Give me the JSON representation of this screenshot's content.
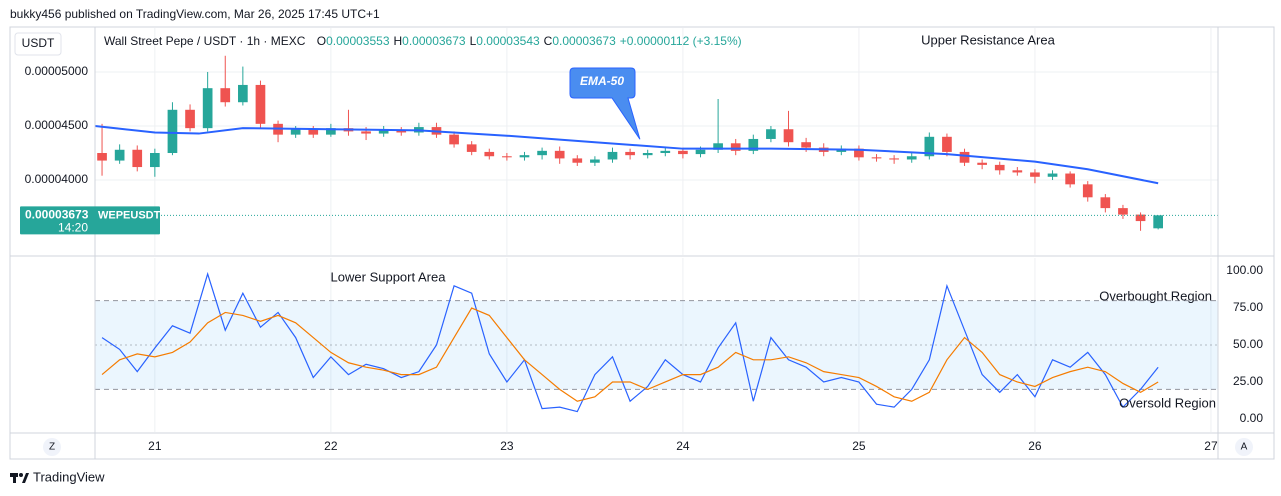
{
  "header": {
    "published": "bukky456 published on TradingView.com, Mar 26, 2025 17:45 UTC+1",
    "brand": "TradingView"
  },
  "legend": {
    "symbol": "Wall Street Pepe / USDT · 1h · MEXC",
    "ohlc": [
      {
        "key": "O",
        "value": 3.553e-05
      },
      {
        "key": "H",
        "value": 3.673e-05
      },
      {
        "key": "L",
        "value": 3.543e-05
      },
      {
        "key": "C",
        "value": 3.673e-05
      }
    ],
    "change": "+0.00000112 (+3.15%)"
  },
  "scale_buttons": [
    "Z",
    "A"
  ],
  "chart_data": [
    {
      "type": "candlestick",
      "scale_label": "USDT",
      "up_color": "#26a69a",
      "down_color": "#ef5350",
      "x": [
        20.7,
        20.8,
        20.9,
        21.0,
        21.1,
        21.2,
        21.3,
        21.4,
        21.5,
        21.6,
        21.7,
        21.8,
        21.9,
        22.0,
        22.1,
        22.2,
        22.3,
        22.4,
        22.5,
        22.6,
        22.7,
        22.8,
        22.9,
        23.0,
        23.1,
        23.2,
        23.3,
        23.4,
        23.5,
        23.6,
        23.7,
        23.8,
        23.9,
        24.0,
        24.1,
        24.2,
        24.3,
        24.4,
        24.5,
        24.6,
        24.7,
        24.8,
        24.9,
        25.0,
        25.1,
        25.2,
        25.3,
        25.4,
        25.5,
        25.6,
        25.7,
        25.8,
        25.9,
        26.0,
        26.1,
        26.2,
        26.3,
        26.4,
        26.5,
        26.6,
        26.7
      ],
      "open": [
        4.25e-05,
        4.18e-05,
        4.28e-05,
        4.12e-05,
        4.25e-05,
        4.65e-05,
        4.48e-05,
        4.85e-05,
        4.72e-05,
        4.88e-05,
        4.52e-05,
        4.42e-05,
        4.47e-05,
        4.42e-05,
        4.48e-05,
        4.45e-05,
        4.43e-05,
        4.46e-05,
        4.44e-05,
        4.49e-05,
        4.42e-05,
        4.33e-05,
        4.26e-05,
        4.22e-05,
        4.21e-05,
        4.23e-05,
        4.27e-05,
        4.2e-05,
        4.16e-05,
        4.19e-05,
        4.26e-05,
        4.23e-05,
        4.25e-05,
        4.27e-05,
        4.24e-05,
        4.28e-05,
        4.34e-05,
        4.27e-05,
        4.38e-05,
        4.47e-05,
        4.35e-05,
        4.3e-05,
        4.26e-05,
        4.29e-05,
        4.21e-05,
        4.2e-05,
        4.19e-05,
        4.22e-05,
        4.4e-05,
        4.26e-05,
        4.16e-05,
        4.14e-05,
        4.09e-05,
        4.07e-05,
        4.03e-05,
        4.06e-05,
        3.96e-05,
        3.84e-05,
        3.74e-05,
        3.68e-05,
        3.553e-05
      ],
      "high": [
        4.52e-05,
        4.33e-05,
        4.32e-05,
        4.29e-05,
        4.72e-05,
        4.7e-05,
        5e-05,
        5.15e-05,
        5.05e-05,
        4.92e-05,
        4.55e-05,
        4.5e-05,
        4.5e-05,
        4.52e-05,
        4.65e-05,
        4.49e-05,
        4.5e-05,
        4.49e-05,
        4.53e-05,
        4.53e-05,
        4.45e-05,
        4.36e-05,
        4.29e-05,
        4.25e-05,
        4.26e-05,
        4.3e-05,
        4.31e-05,
        4.23e-05,
        4.22e-05,
        4.3e-05,
        4.29e-05,
        4.28e-05,
        4.31e-05,
        4.3e-05,
        4.31e-05,
        4.75e-05,
        4.38e-05,
        4.42e-05,
        4.5e-05,
        4.64e-05,
        4.39e-05,
        4.34e-05,
        4.32e-05,
        4.32e-05,
        4.24e-05,
        4.23e-05,
        4.25e-05,
        4.44e-05,
        4.43e-05,
        4.29e-05,
        4.19e-05,
        4.17e-05,
        4.12e-05,
        4.1e-05,
        4.09e-05,
        4.08e-05,
        3.99e-05,
        3.87e-05,
        3.77e-05,
        3.7e-05,
        3.673e-05
      ],
      "low": [
        4.04e-05,
        4.15e-05,
        4.08e-05,
        4.03e-05,
        4.23e-05,
        4.45e-05,
        4.45e-05,
        4.68e-05,
        4.69e-05,
        4.48e-05,
        4.35e-05,
        4.39e-05,
        4.39e-05,
        4.4e-05,
        4.41e-05,
        4.37e-05,
        4.4e-05,
        4.41e-05,
        4.41e-05,
        4.39e-05,
        4.3e-05,
        4.23e-05,
        4.19e-05,
        4.18e-05,
        4.18e-05,
        4.19e-05,
        4.15e-05,
        4.13e-05,
        4.13e-05,
        4.16e-05,
        4.19e-05,
        4.2e-05,
        4.22e-05,
        4.2e-05,
        4.21e-05,
        4.25e-05,
        4.23e-05,
        4.24e-05,
        4.35e-05,
        4.31e-05,
        4.26e-05,
        4.22e-05,
        4.23e-05,
        4.18e-05,
        4.17e-05,
        4.15e-05,
        4.16e-05,
        4.19e-05,
        4.22e-05,
        4.13e-05,
        4.1e-05,
        4.05e-05,
        4.04e-05,
        3.97e-05,
        4e-05,
        3.93e-05,
        3.8e-05,
        3.7e-05,
        3.64e-05,
        3.53e-05,
        3.543e-05
      ],
      "close": [
        4.18e-05,
        4.28e-05,
        4.12e-05,
        4.25e-05,
        4.65e-05,
        4.48e-05,
        4.85e-05,
        4.72e-05,
        4.88e-05,
        4.52e-05,
        4.42e-05,
        4.47e-05,
        4.42e-05,
        4.48e-05,
        4.45e-05,
        4.43e-05,
        4.46e-05,
        4.44e-05,
        4.49e-05,
        4.42e-05,
        4.33e-05,
        4.26e-05,
        4.22e-05,
        4.21e-05,
        4.23e-05,
        4.27e-05,
        4.2e-05,
        4.16e-05,
        4.19e-05,
        4.26e-05,
        4.23e-05,
        4.25e-05,
        4.27e-05,
        4.24e-05,
        4.28e-05,
        4.34e-05,
        4.27e-05,
        4.38e-05,
        4.47e-05,
        4.35e-05,
        4.3e-05,
        4.26e-05,
        4.29e-05,
        4.21e-05,
        4.2e-05,
        4.19e-05,
        4.22e-05,
        4.4e-05,
        4.26e-05,
        4.16e-05,
        4.14e-05,
        4.09e-05,
        4.07e-05,
        4.03e-05,
        4.06e-05,
        3.96e-05,
        3.84e-05,
        3.74e-05,
        3.68e-05,
        3.62e-05,
        3.673e-05
      ],
      "series": [
        {
          "name": "EMA-50",
          "color": "#2962ff",
          "x": [
            20.66,
            21.0,
            21.25,
            21.5,
            22.0,
            22.5,
            23.0,
            23.5,
            24.0,
            24.5,
            25.0,
            25.5,
            26.0,
            26.3,
            26.7
          ],
          "values": [
            4.5e-05,
            4.44e-05,
            4.43e-05,
            4.48e-05,
            4.47e-05,
            4.46e-05,
            4.41e-05,
            4.35e-05,
            4.29e-05,
            4.29e-05,
            4.28e-05,
            4.24e-05,
            4.17e-05,
            4.1e-05,
            3.97e-05
          ]
        }
      ],
      "last_price": 3.673e-05,
      "symbol_tag": "WEPEUSDT",
      "countdown": "14:20",
      "annotations": [
        "Upper Resistance Area"
      ],
      "xlim": [
        20.66,
        27.04
      ],
      "xticks": [
        21,
        22,
        23,
        24,
        25,
        26,
        27
      ],
      "ylim": [
        3.306e-05,
        5.407e-05
      ],
      "yticks": [
        {
          "value": 4e-05,
          "label": "0.00004000"
        },
        {
          "value": 4.5e-05,
          "label": "0.00004500"
        },
        {
          "value": 5e-05,
          "label": "0.00005000"
        }
      ],
      "grid": true
    },
    {
      "type": "line",
      "x": [
        20.7,
        20.8,
        20.9,
        21.0,
        21.1,
        21.2,
        21.3,
        21.4,
        21.5,
        21.6,
        21.7,
        21.8,
        21.9,
        22.0,
        22.1,
        22.2,
        22.3,
        22.4,
        22.5,
        22.6,
        22.7,
        22.8,
        22.9,
        23.0,
        23.1,
        23.2,
        23.3,
        23.4,
        23.5,
        23.6,
        23.7,
        23.8,
        23.9,
        24.0,
        24.1,
        24.2,
        24.3,
        24.4,
        24.5,
        24.6,
        24.7,
        24.8,
        24.9,
        25.0,
        25.1,
        25.2,
        25.3,
        25.4,
        25.5,
        25.6,
        25.7,
        25.8,
        25.9,
        26.0,
        26.1,
        26.2,
        26.3,
        26.4,
        26.5,
        26.6,
        26.7
      ],
      "series": [
        {
          "color": "#2962ff",
          "values": [
            55,
            47,
            32,
            48,
            63,
            58,
            98,
            60,
            85,
            62,
            72,
            55,
            28,
            42,
            30,
            37,
            34,
            28,
            32,
            50,
            90,
            85,
            44,
            25,
            40,
            7,
            8,
            5,
            30,
            42,
            12,
            22,
            40,
            30,
            25,
            48,
            65,
            12,
            55,
            40,
            35,
            25,
            28,
            25,
            10,
            8,
            20,
            40,
            90,
            60,
            30,
            18,
            30,
            15,
            40,
            35,
            45,
            30,
            8,
            20,
            35
          ]
        },
        {
          "color": "#f57c00",
          "values": [
            30,
            40,
            44,
            42,
            45,
            52,
            65,
            72,
            70,
            66,
            70,
            65,
            55,
            45,
            38,
            35,
            33,
            30,
            30,
            35,
            55,
            75,
            70,
            55,
            40,
            30,
            20,
            12,
            15,
            25,
            25,
            20,
            25,
            30,
            30,
            35,
            45,
            40,
            40,
            42,
            38,
            32,
            30,
            28,
            22,
            15,
            12,
            18,
            40,
            55,
            45,
            30,
            25,
            22,
            28,
            32,
            35,
            32,
            24,
            18,
            25
          ]
        }
      ],
      "levels": [
        80,
        50,
        20
      ],
      "band_color": "#2196f3",
      "annotations": [
        "Lower Support Area",
        "Overbought Region",
        "Oversold Region"
      ],
      "xlim": [
        20.66,
        27.04
      ],
      "ylim": [
        -8.8,
        108.8
      ],
      "yticks": [
        {
          "value": 100,
          "label": "100.00"
        },
        {
          "value": 75,
          "label": "75.00"
        },
        {
          "value": 50,
          "label": "50.00"
        },
        {
          "value": 25,
          "label": "25.00"
        },
        {
          "value": 0,
          "label": "0.00"
        }
      ]
    }
  ]
}
